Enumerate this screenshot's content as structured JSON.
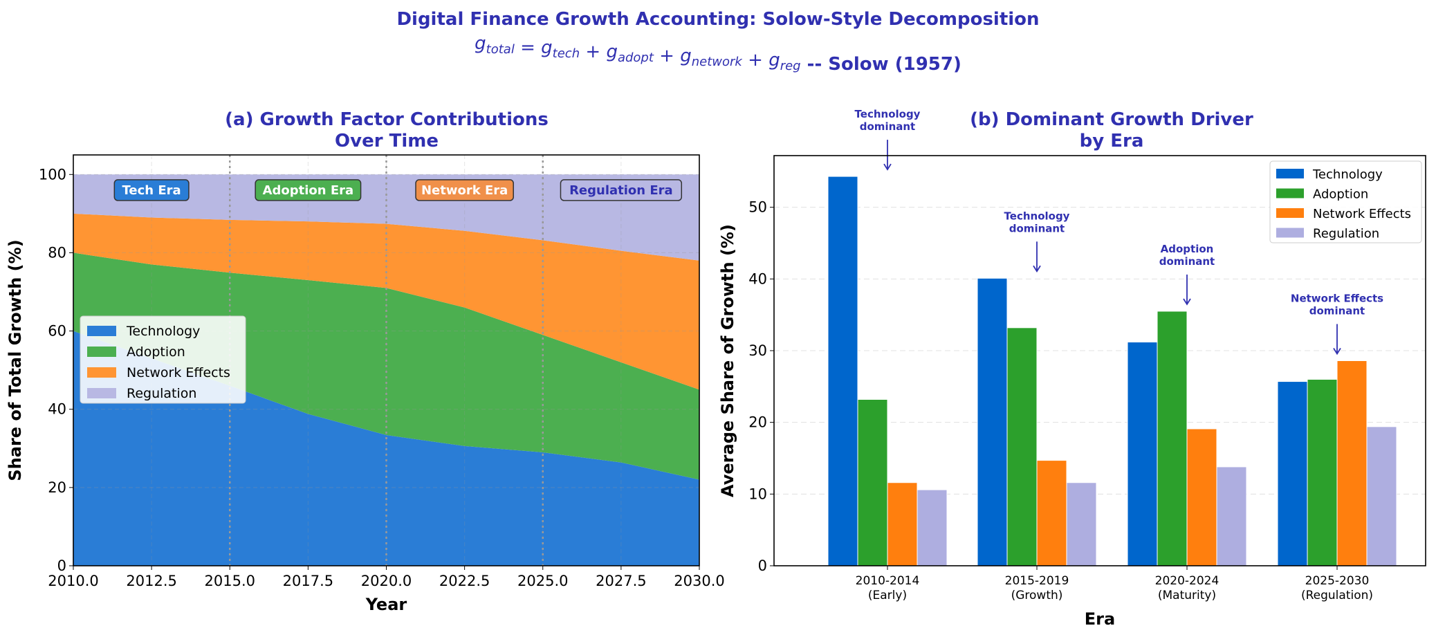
{
  "suptitle": "Digital Finance Growth Accounting: Solow-Style Decomposition",
  "equation": {
    "terms": [
      {
        "base": "g",
        "sub": "total"
      },
      {
        "op": " = "
      },
      {
        "base": "g",
        "sub": "tech"
      },
      {
        "op": " + "
      },
      {
        "base": "g",
        "sub": "adopt"
      },
      {
        "op": " + "
      },
      {
        "base": "g",
        "sub": "network"
      },
      {
        "op": " + "
      },
      {
        "base": "g",
        "sub": "reg"
      }
    ],
    "suffix": " -- Solow (1957)"
  },
  "colors": {
    "title": "#3030b0",
    "technology": "#2a7dd6",
    "adoption": "#4caf50",
    "network": "#ff9533",
    "regulation": "#b8b8e3",
    "bar_technology": "#0066cc",
    "bar_adoption": "#2ca02c",
    "bar_network": "#ff7f0e",
    "bar_regulation": "#aeaee0"
  },
  "chart_data": [
    {
      "type": "area",
      "stacked": true,
      "title": [
        "(a) Growth Factor Contributions",
        "Over Time"
      ],
      "xlabel": "Year",
      "ylabel": "Share of Total Growth (%)",
      "xlim": [
        2010,
        2030
      ],
      "ylim": [
        0,
        105
      ],
      "xticks": [
        "2010.0",
        "2012.5",
        "2015.0",
        "2017.5",
        "2020.0",
        "2022.5",
        "2025.0",
        "2027.5",
        "2030.0"
      ],
      "yticks": [
        "0",
        "20",
        "40",
        "60",
        "80",
        "100"
      ],
      "grid": true,
      "legend_position": "center-left",
      "x": [
        2010,
        2012.5,
        2015,
        2017.5,
        2020,
        2022.5,
        2025,
        2027.5,
        2030
      ],
      "series": [
        {
          "name": "Technology",
          "values": [
            60,
            53,
            46,
            38.8,
            33.4,
            30.6,
            29,
            26.4,
            22
          ]
        },
        {
          "name": "Adoption",
          "values": [
            20,
            24,
            28.9,
            34.2,
            37.6,
            35.4,
            30,
            25.6,
            23
          ]
        },
        {
          "name": "Network Effects",
          "values": [
            10,
            12,
            13.5,
            15,
            16.4,
            19.6,
            24.2,
            28.5,
            33
          ]
        },
        {
          "name": "Regulation",
          "values": [
            10,
            11,
            11.6,
            12,
            12.6,
            14.4,
            16.8,
            19.5,
            22
          ]
        }
      ],
      "era_lines": [
        2015,
        2020,
        2025
      ],
      "era_labels": [
        {
          "label": "Tech Era",
          "x": 2012.5,
          "y": 96,
          "fill": "#2a7dd6",
          "text": "#ffffff"
        },
        {
          "label": "Adoption Era",
          "x": 2017.5,
          "y": 96,
          "fill": "#4caf50",
          "text": "#ffffff"
        },
        {
          "label": "Network Era",
          "x": 2022.5,
          "y": 96,
          "fill": "#f0904a",
          "text": "#ffffff"
        },
        {
          "label": "Regulation Era",
          "x": 2027.5,
          "y": 96,
          "fill": "#b8b8e3",
          "text": "#3030b0"
        }
      ]
    },
    {
      "type": "bar",
      "title": [
        "(b) Dominant Growth Driver",
        "by Era"
      ],
      "xlabel": "Era",
      "ylabel": "Average Share of Growth (%)",
      "ylim": [
        0,
        57.2
      ],
      "yticks": [
        "0",
        "10",
        "20",
        "30",
        "40",
        "50"
      ],
      "grid": true,
      "legend_position": "top-right",
      "categories": [
        [
          "2010-2014",
          "(Early)"
        ],
        [
          "2015-2019",
          "(Growth)"
        ],
        [
          "2020-2024",
          "(Maturity)"
        ],
        [
          "2025-2030",
          "(Regulation)"
        ]
      ],
      "series": [
        {
          "name": "Technology",
          "values": [
            54.3,
            40.1,
            31.2,
            25.7
          ]
        },
        {
          "name": "Adoption",
          "values": [
            23.2,
            33.2,
            35.5,
            26.0
          ]
        },
        {
          "name": "Network Effects",
          "values": [
            11.6,
            14.7,
            19.1,
            28.6
          ]
        },
        {
          "name": "Regulation",
          "values": [
            10.6,
            11.6,
            13.8,
            19.4
          ]
        }
      ],
      "annotations": [
        {
          "text": [
            "Technology",
            "dominant"
          ],
          "arrow_to": 54.3
        },
        {
          "text": [
            "Technology",
            "dominant"
          ],
          "arrow_to": 40.1
        },
        {
          "text": [
            "Adoption",
            "dominant"
          ],
          "arrow_to": 35.5
        },
        {
          "text": [
            "Network Effects",
            "dominant"
          ],
          "arrow_to": 28.6
        }
      ]
    }
  ]
}
